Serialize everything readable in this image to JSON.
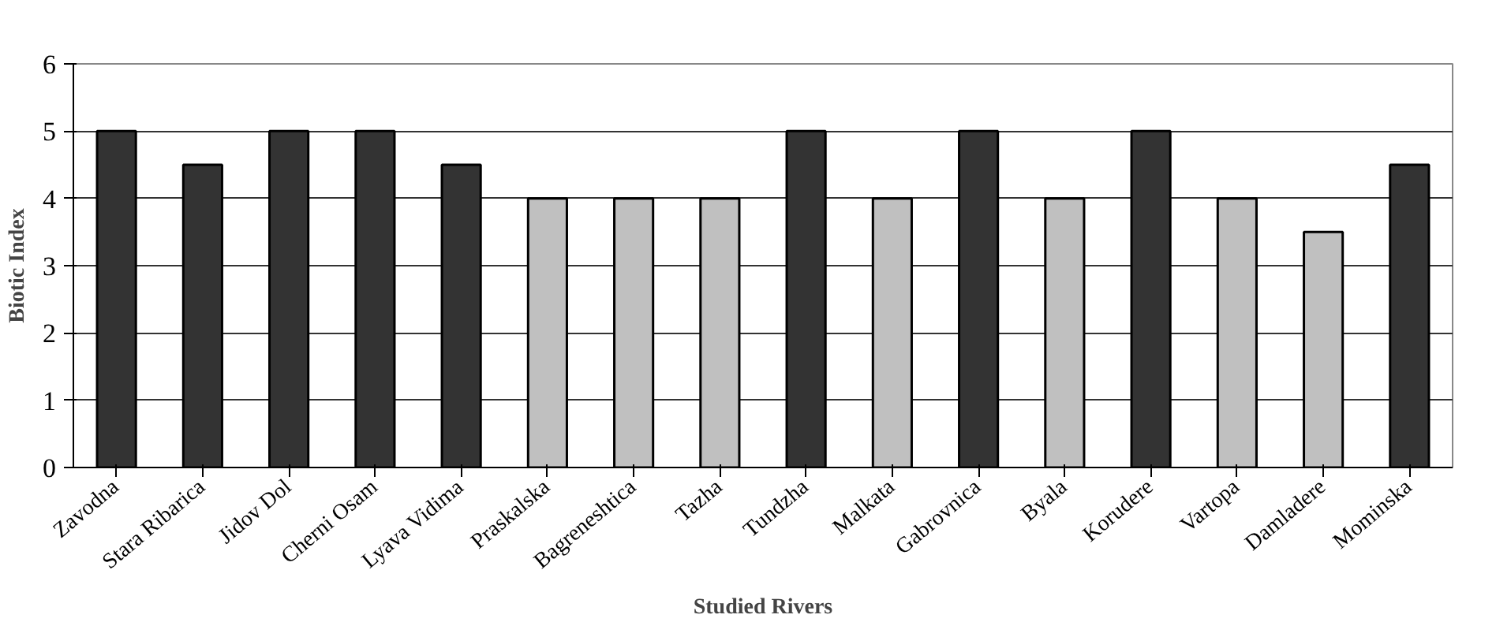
{
  "chart_data": {
    "type": "bar",
    "xlabel": "Studied Rivers",
    "ylabel": "Biotic Index",
    "categories": [
      "Zavodna",
      "Stara Ribarica",
      "Jidov Dol",
      "Cherni Osam",
      "Lyava Vidima",
      "Praskalska",
      "Bagreneshtica",
      "Tazha",
      "Tundzha",
      "Malkata",
      "Gabrovnica",
      "Byala",
      "Korudere",
      "Vartopa",
      "Damladere",
      "Mominska"
    ],
    "values": [
      5,
      4.5,
      5,
      5,
      4.5,
      4,
      4,
      4,
      5,
      4,
      5,
      4,
      5,
      4,
      3.5,
      4.5
    ],
    "colors": [
      "#333333",
      "#333333",
      "#333333",
      "#333333",
      "#333333",
      "#c0c0c0",
      "#c0c0c0",
      "#c0c0c0",
      "#333333",
      "#c0c0c0",
      "#333333",
      "#c0c0c0",
      "#333333",
      "#c0c0c0",
      "#c0c0c0",
      "#333333"
    ],
    "ylim": [
      0,
      6
    ],
    "yticks": [
      0,
      1,
      2,
      3,
      4,
      5,
      6
    ],
    "grid": "y"
  }
}
